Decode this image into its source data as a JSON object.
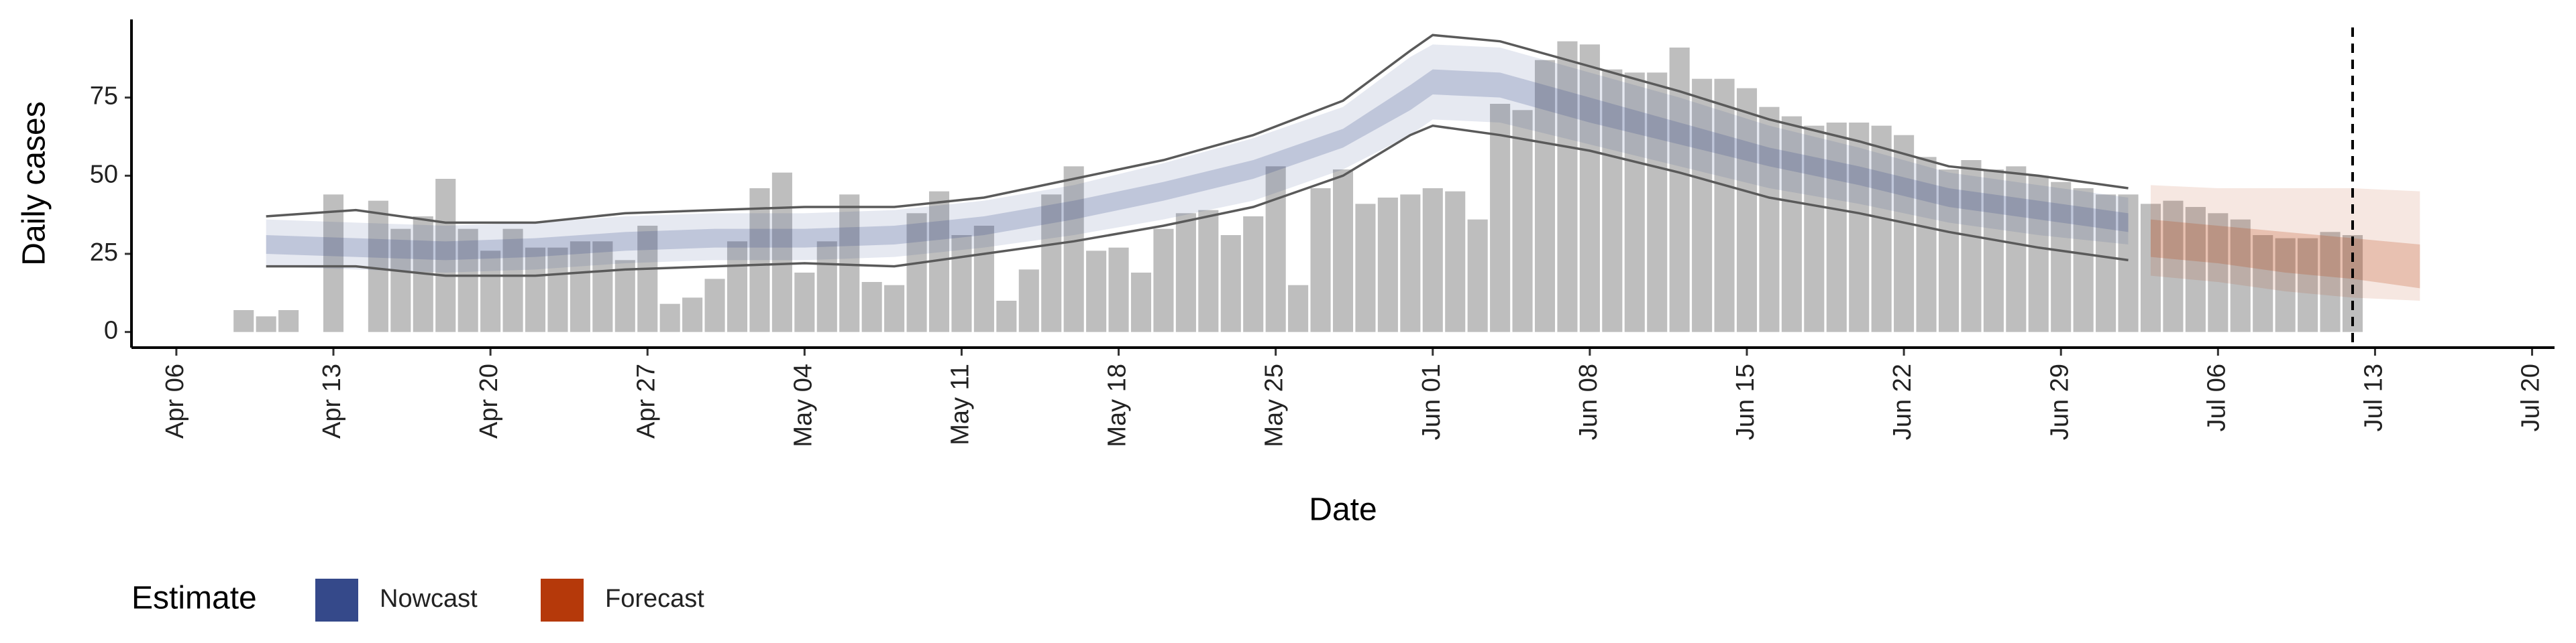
{
  "chart_data": {
    "type": "bar",
    "ylabel": "Daily cases",
    "xlabel": "Date",
    "color": "#bebebe",
    "x": [
      "Apr 09",
      "Apr 10",
      "Apr 11",
      "Apr 13",
      "Apr 15",
      "Apr 16",
      "Apr 17",
      "Apr 18",
      "Apr 19",
      "Apr 20",
      "Apr 21",
      "Apr 22",
      "Apr 23",
      "Apr 24",
      "Apr 25",
      "Apr 26",
      "Apr 27",
      "Apr 28",
      "Apr 29",
      "Apr 30",
      "May 01",
      "May 02",
      "May 03",
      "May 04",
      "May 05",
      "May 06",
      "May 07",
      "May 08",
      "May 09",
      "May 10",
      "May 11",
      "May 12",
      "May 13",
      "May 14",
      "May 15",
      "May 16",
      "May 17",
      "May 18",
      "May 19",
      "May 20",
      "May 21",
      "May 22",
      "May 23",
      "May 24",
      "May 25",
      "May 26",
      "May 27",
      "May 28",
      "May 29",
      "May 30",
      "May 31",
      "Jun 01",
      "Jun 02",
      "Jun 03",
      "Jun 04",
      "Jun 05",
      "Jun 06",
      "Jun 07",
      "Jun 08",
      "Jun 09",
      "Jun 10",
      "Jun 11",
      "Jun 12",
      "Jun 13",
      "Jun 14",
      "Jun 15",
      "Jun 16",
      "Jun 17",
      "Jun 18",
      "Jun 19",
      "Jun 20",
      "Jun 21",
      "Jun 22",
      "Jun 23",
      "Jun 24",
      "Jun 25",
      "Jun 26",
      "Jun 27",
      "Jun 28",
      "Jun 29",
      "Jun 30",
      "Jul 01",
      "Jul 02",
      "Jul 03",
      "Jul 04",
      "Jul 05",
      "Jul 06",
      "Jul 07",
      "Jul 08",
      "Jul 09",
      "Jul 10",
      "Jul 11",
      "Jul 12"
    ],
    "values": [
      7,
      5,
      7,
      44,
      42,
      33,
      37,
      49,
      33,
      26,
      33,
      27,
      27,
      29,
      29,
      23,
      34,
      9,
      11,
      17,
      29,
      46,
      51,
      19,
      29,
      44,
      16,
      15,
      38,
      45,
      31,
      34,
      10,
      20,
      44,
      53,
      26,
      27,
      19,
      33,
      38,
      39,
      31,
      37,
      53,
      15,
      46,
      52,
      41,
      43,
      44,
      46,
      45,
      36,
      73,
      71,
      87,
      93,
      92,
      84,
      83,
      83,
      91,
      81,
      81,
      78,
      72,
      69,
      66,
      67,
      67,
      66,
      63,
      56,
      52,
      55,
      52,
      53,
      50,
      48,
      46,
      44,
      44,
      41,
      42,
      40,
      38,
      36,
      31,
      30,
      30,
      32,
      31
    ],
    "xlim": [
      "Apr 04",
      "Jul 21"
    ],
    "xticks": [
      "Apr 06",
      "Apr 13",
      "Apr 20",
      "Apr 27",
      "May 04",
      "May 11",
      "May 18",
      "May 25",
      "Jun 01",
      "Jun 08",
      "Jun 15",
      "Jun 22",
      "Jun 29",
      "Jul 06",
      "Jul 13",
      "Jul 20"
    ],
    "ylim": [
      -5,
      100
    ],
    "yticks": [
      0,
      25,
      50,
      75
    ],
    "lines": {
      "color": "#5a5a5a",
      "x": [
        "Apr 10",
        "Apr 14",
        "Apr 18",
        "Apr 22",
        "Apr 26",
        "Apr 30",
        "May 04",
        "May 08",
        "May 12",
        "May 16",
        "May 20",
        "May 24",
        "May 28",
        "May 31",
        "Jun 01",
        "Jun 04",
        "Jun 08",
        "Jun 12",
        "Jun 16",
        "Jun 20",
        "Jun 24",
        "Jun 28",
        "Jul 02"
      ],
      "upper": [
        37,
        39,
        35,
        35,
        38,
        39,
        40,
        40,
        43,
        49,
        55,
        63,
        74,
        90,
        95,
        93,
        85,
        77,
        68,
        61,
        53,
        50,
        46
      ],
      "lower": [
        21,
        21,
        18,
        18,
        20,
        21,
        22,
        21,
        25,
        29,
        34,
        40,
        50,
        63,
        66,
        63,
        58,
        51,
        43,
        38,
        32,
        27,
        23
      ]
    },
    "bands": [
      {
        "name": "Nowcast",
        "color": "#35498a",
        "x": [
          "Apr 10",
          "Apr 14",
          "Apr 18",
          "Apr 22",
          "Apr 26",
          "Apr 30",
          "May 04",
          "May 08",
          "May 12",
          "May 16",
          "May 20",
          "May 24",
          "May 28",
          "May 31",
          "Jun 01",
          "Jun 04",
          "Jun 08",
          "Jun 12",
          "Jun 16",
          "Jun 20",
          "Jun 24",
          "Jun 28",
          "Jul 02"
        ],
        "outer_upper": [
          36,
          35,
          34,
          35,
          37,
          38,
          38,
          39,
          42,
          47,
          54,
          62,
          72,
          88,
          92,
          91,
          83,
          75,
          66,
          59,
          51,
          47,
          43
        ],
        "outer_lower": [
          21,
          20,
          19,
          20,
          22,
          23,
          23,
          24,
          27,
          31,
          36,
          42,
          52,
          63,
          68,
          67,
          60,
          53,
          46,
          41,
          35,
          31,
          28
        ],
        "inner_upper": [
          31,
          30,
          29,
          30,
          32,
          33,
          33,
          34,
          37,
          42,
          48,
          55,
          65,
          79,
          84,
          83,
          75,
          67,
          59,
          53,
          46,
          42,
          38
        ],
        "inner_lower": [
          25,
          24,
          23,
          24,
          26,
          27,
          27,
          28,
          31,
          36,
          42,
          49,
          59,
          71,
          76,
          75,
          67,
          60,
          53,
          47,
          40,
          36,
          32
        ]
      },
      {
        "name": "Forecast",
        "color": "#b5390a",
        "x": [
          "Jul 03",
          "Jul 06",
          "Jul 09",
          "Jul 12",
          "Jul 15"
        ],
        "outer_upper": [
          47,
          46,
          46,
          46,
          45
        ],
        "outer_lower": [
          18,
          16,
          13,
          11,
          10
        ],
        "inner_upper": [
          36,
          34,
          32,
          30,
          28
        ],
        "inner_lower": [
          24,
          22,
          19,
          17,
          14
        ]
      }
    ],
    "vline": "Jul 12",
    "legend_title": "Estimate",
    "legend_position": "bottom"
  }
}
